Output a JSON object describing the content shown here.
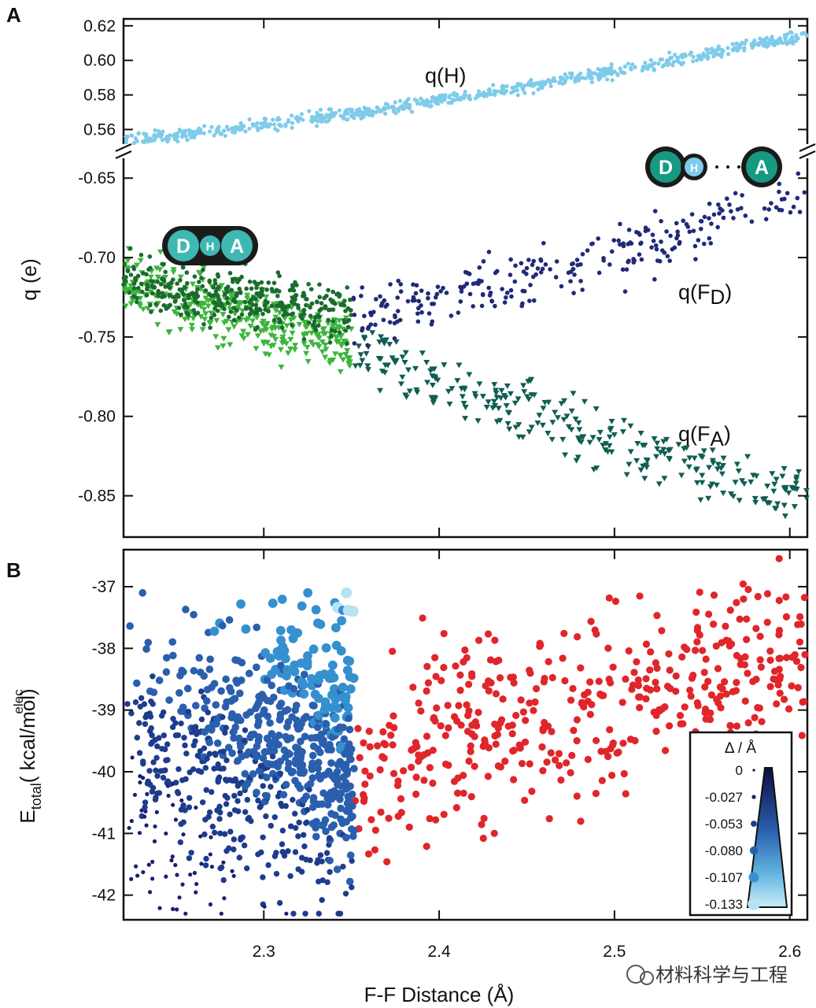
{
  "chart_data": [
    {
      "panel": "A",
      "type": "scatter",
      "xlabel": "F-F Distance (Å)",
      "ylabel": "q (e)",
      "xlim": [
        2.22,
        2.61
      ],
      "x_ticks": [
        "2.3",
        "2.4",
        "2.5",
        "2.6"
      ],
      "y_ticks_upper": [
        "0.62",
        "0.60",
        "0.58",
        "0.56"
      ],
      "y_ticks_lower": [
        "-0.65",
        "-0.70",
        "-0.75",
        "-0.80",
        "-0.85"
      ],
      "ylim_upper": [
        0.552,
        0.624
      ],
      "ylim_lower": [
        -0.876,
        -0.637
      ],
      "axis_break": true,
      "annotations": {
        "qH": "q(H)",
        "qFD_main": "q(F",
        "qFD_sub": "D",
        "qFA_main": "q(F",
        "qFA_sub": "A",
        "close": "",
        "close_end": ")",
        "donor": "D",
        "hydrogen": "H",
        "acceptor": "A"
      },
      "series": [
        {
          "key": "qH",
          "marker": "circle",
          "color": "#7fcbea",
          "trend": [
            [
              2.22,
              0.5535
            ],
            [
              2.3,
              0.5625
            ],
            [
              2.4,
              0.5765
            ],
            [
              2.5,
              0.5935
            ],
            [
              2.61,
              0.6145
            ]
          ],
          "spread": 0.0018
        },
        {
          "key": "qFD",
          "marker": "circle",
          "color_left": "#1b6b2e",
          "color_right": "#1f2a78",
          "split_x": 2.35,
          "trend": [
            [
              2.22,
              -0.715
            ],
            [
              2.3,
              -0.728
            ],
            [
              2.35,
              -0.736
            ],
            [
              2.4,
              -0.725
            ],
            [
              2.5,
              -0.7
            ],
            [
              2.58,
              -0.67
            ],
            [
              2.61,
              -0.66
            ]
          ],
          "spread": 0.008
        },
        {
          "key": "qFA",
          "marker": "triangle-down",
          "color_left": "#3db53c",
          "color_right": "#0f5e52",
          "split_x": 2.35,
          "trend": [
            [
              2.22,
              -0.716
            ],
            [
              2.3,
              -0.738
            ],
            [
              2.35,
              -0.756
            ],
            [
              2.4,
              -0.778
            ],
            [
              2.5,
              -0.815
            ],
            [
              2.58,
              -0.845
            ],
            [
              2.61,
              -0.848
            ]
          ],
          "spread": 0.009
        }
      ]
    },
    {
      "panel": "B",
      "type": "scatter",
      "xlabel": "F-F Distance (Å)",
      "ylabel_main": "E",
      "ylabel_sup": "elec",
      "ylabel_sub": "total",
      "ylabel_unit": "( kcal/mol)",
      "xlim": [
        2.22,
        2.61
      ],
      "ylim": [
        -42.4,
        -36.4
      ],
      "x_ticks": [
        "2.3",
        "2.4",
        "2.5",
        "2.6"
      ],
      "y_ticks": [
        "-37",
        "-38",
        "-39",
        "-40",
        "-41",
        "-42"
      ],
      "series": [
        {
          "key": "blue_group",
          "marker": "circle",
          "x_range": [
            2.22,
            2.352
          ],
          "y_center": -39.8,
          "y_spread": 1.1,
          "color_scale": [
            "#1a1f6e",
            "#1e3c8c",
            "#2a5fae",
            "#3590cf",
            "#b7e2f3"
          ]
        },
        {
          "key": "red_group",
          "marker": "circle",
          "color": "#e0262b",
          "trend": [
            [
              2.35,
              -40.3
            ],
            [
              2.4,
              -39.4
            ],
            [
              2.5,
              -38.9
            ],
            [
              2.58,
              -38.2
            ],
            [
              2.61,
              -38.0
            ]
          ],
          "y_spread": 0.75
        }
      ],
      "legend": {
        "title": "Δ / Å",
        "entries": [
          "0",
          "-0.027",
          "-0.053",
          "-0.080",
          "-0.107",
          "-0.133"
        ],
        "placement": "bottom-right"
      }
    }
  ],
  "panel_letters": {
    "a": "A",
    "b": "B"
  },
  "watermark": {
    "text": "材料科学与工程"
  }
}
